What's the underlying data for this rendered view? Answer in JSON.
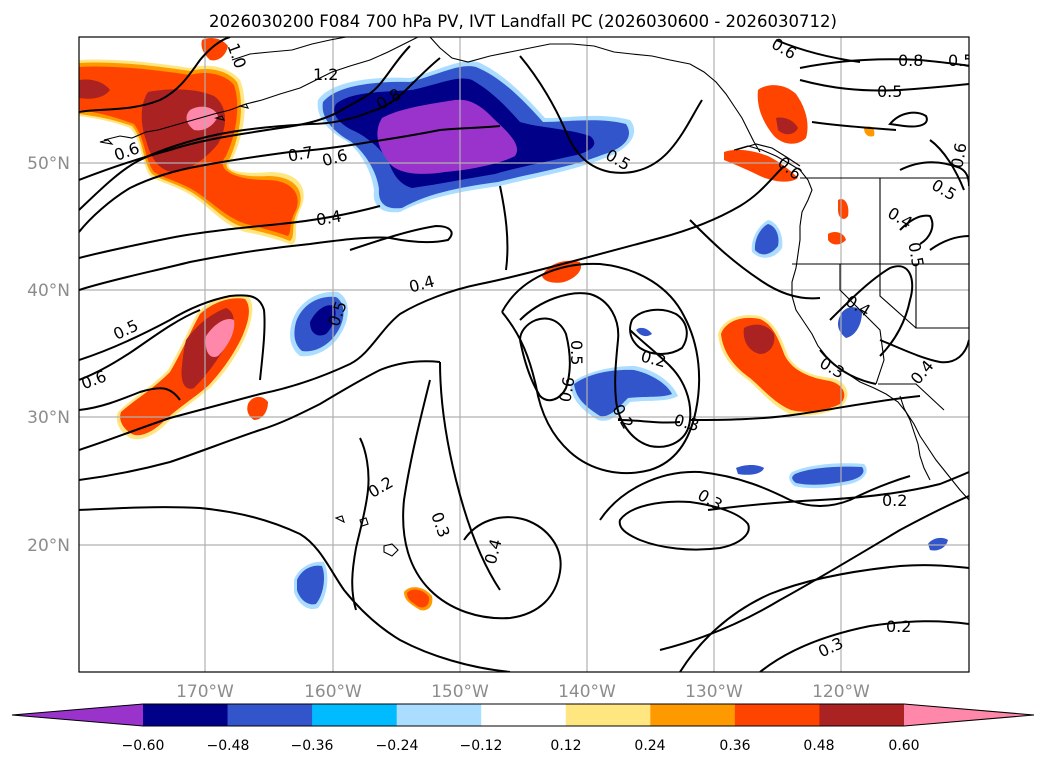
{
  "title": "2026030200 F084 700 hPa PV, IVT Landfall PC (2026030600 - 2026030712)",
  "lat_labels": [
    "50°N",
    "40°N",
    "30°N",
    "20°N"
  ],
  "lon_labels": [
    "170°W",
    "160°W",
    "150°W",
    "140°W",
    "130°W",
    "120°W"
  ],
  "colorbar": {
    "ticks": [
      "−0.60",
      "−0.48",
      "−0.36",
      "−0.24",
      "−0.12",
      "0.12",
      "0.24",
      "0.36",
      "0.48",
      "0.60"
    ],
    "colors": [
      "#9933cc",
      "#000088",
      "#3355cc",
      "#00bbff",
      "#aaddff",
      "#ffffff",
      "#ffe680",
      "#ff9900",
      "#ff4400",
      "#aa2222",
      "#ff88aa"
    ]
  },
  "contour_labels": [
    {
      "id": "c1",
      "text": "0.8"
    },
    {
      "id": "c2",
      "text": "0.5"
    },
    {
      "id": "c3",
      "text": "0.6"
    },
    {
      "id": "c4",
      "text": "0.5"
    },
    {
      "id": "c5",
      "text": "1.2"
    },
    {
      "id": "c6",
      "text": "1.0"
    },
    {
      "id": "c7",
      "text": "0.6"
    },
    {
      "id": "c8",
      "text": "0.7"
    },
    {
      "id": "c9",
      "text": "0.6"
    },
    {
      "id": "c10",
      "text": "0.8"
    },
    {
      "id": "c11",
      "text": "0.5"
    },
    {
      "id": "c12",
      "text": "0.4"
    },
    {
      "id": "c13",
      "text": "0.4"
    },
    {
      "id": "c14",
      "text": "0.5"
    },
    {
      "id": "c15",
      "text": "0.6"
    },
    {
      "id": "c16",
      "text": "0.5"
    },
    {
      "id": "c17",
      "text": "0.5"
    },
    {
      "id": "c18",
      "text": "0.6"
    },
    {
      "id": "c19",
      "text": "0.2"
    },
    {
      "id": "c20",
      "text": "0.3"
    },
    {
      "id": "c21",
      "text": "0.2"
    },
    {
      "id": "c22",
      "text": "0.3"
    },
    {
      "id": "c23",
      "text": "0.4"
    },
    {
      "id": "c24",
      "text": "0.3"
    },
    {
      "id": "c25",
      "text": "0.2"
    },
    {
      "id": "c26",
      "text": "0.3"
    },
    {
      "id": "c27",
      "text": "0.2"
    },
    {
      "id": "c28",
      "text": "0.2"
    },
    {
      "id": "c29",
      "text": "0.4"
    },
    {
      "id": "c30",
      "text": "0.3"
    },
    {
      "id": "c31",
      "text": "0.4"
    },
    {
      "id": "c32",
      "text": "0.5"
    },
    {
      "id": "c33",
      "text": "0.4"
    },
    {
      "id": "c34",
      "text": "0.6"
    },
    {
      "id": "c35",
      "text": "0.5"
    },
    {
      "id": "c36",
      "text": "0.6"
    }
  ]
}
